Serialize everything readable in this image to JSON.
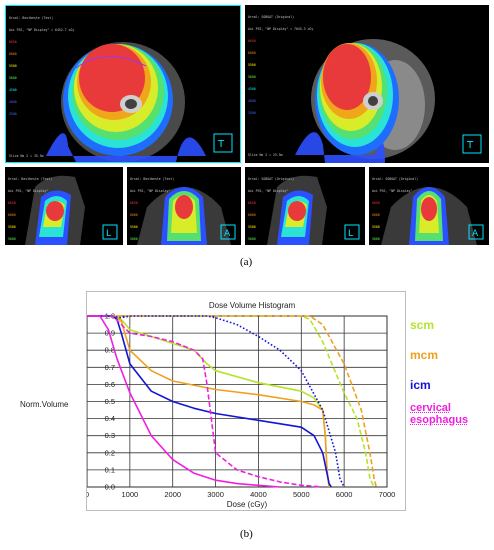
{
  "captions": {
    "a": "(a)",
    "b": "(b)"
  },
  "ct_panels": [
    {
      "id": "axial-left",
      "header": [
        "Ursal: Bestbeste (Test)",
        "Axi PSS, \"NP Display\" = 6452.7 cGy"
      ],
      "footer": "Slice No 2 = 35.5m",
      "levels": [
        "6650",
        "6000",
        "5500",
        "5000",
        "4500",
        "4000",
        "3500"
      ]
    },
    {
      "id": "axial-right",
      "header": [
        "Ursal: SOBOAT (Original)",
        "Axi PSS, \"NP Display\" = 7045.3 cGy"
      ],
      "footer": "Slice No 2 = 25.5m",
      "levels": [
        "6650",
        "6000",
        "5500",
        "5000",
        "4500",
        "4000",
        "3500"
      ]
    },
    {
      "id": "sag-1",
      "header": [
        "Ursal: Bestbeste (Test)",
        "Axi PSS, \"NP Display\""
      ],
      "footer": "",
      "levels": [
        "6650",
        "6000",
        "5500",
        "5000",
        "4500",
        "4000"
      ]
    },
    {
      "id": "cor-1",
      "header": [
        "Ursal: Bestbeste (Test)",
        "Axi PSS, \"NP Display\""
      ],
      "footer": "",
      "levels": [
        "6650",
        "6000",
        "5500",
        "5000",
        "4500",
        "4000"
      ]
    },
    {
      "id": "sag-2",
      "header": [
        "Ursal: SOBOAT (Original)",
        "Axi PSS, \"NP Display\""
      ],
      "footer": "",
      "levels": [
        "6650",
        "6000",
        "5500",
        "5000",
        "4500",
        "4000"
      ]
    },
    {
      "id": "cor-2",
      "header": [
        "Ursal: SOBOAT (Original)",
        "Axi PSS, \"NP Display\""
      ],
      "footer": "",
      "levels": [
        "6650",
        "6000",
        "5500",
        "5000",
        "4500",
        "4000"
      ]
    }
  ],
  "colors": {
    "scm": "#b5e32a",
    "mcm": "#f0a020",
    "icm": "#1414d8",
    "cervical_esophagus": "#f020e0",
    "grid": "#222222",
    "frame": "#00e5ff"
  },
  "chart_data": {
    "type": "line",
    "title": "Dose Volume Histogram",
    "xlabel": "Dose (cGy)",
    "ylabel": "Norm.Volume",
    "xlim": [
      0,
      7000
    ],
    "ylim": [
      0,
      1
    ],
    "xticks": [
      0,
      1000,
      2000,
      3000,
      4000,
      5000,
      6000,
      7000
    ],
    "yticks": [
      0.0,
      0.1,
      0.2,
      0.3,
      0.4,
      0.5,
      0.6,
      0.7,
      0.8,
      0.9,
      1.0
    ],
    "grid": true,
    "legend_position": "right",
    "series": [
      {
        "name": "scm",
        "style": "solid",
        "color": "#b5e32a",
        "x": [
          0,
          650,
          800,
          1000,
          1500,
          2000,
          2500,
          2800,
          3000,
          4000,
          5000,
          5300,
          5500,
          5560,
          5600,
          5650
        ],
        "y": [
          1.0,
          1.0,
          0.98,
          0.92,
          0.88,
          0.84,
          0.8,
          0.72,
          0.68,
          0.61,
          0.56,
          0.52,
          0.45,
          0.3,
          0.1,
          0.0
        ]
      },
      {
        "name": "scm",
        "style": "dashed",
        "color": "#b5e32a",
        "x": [
          0,
          500,
          2000,
          5000,
          5200,
          5500,
          6000,
          6300,
          6500,
          6600,
          6700
        ],
        "y": [
          1.0,
          1.0,
          1.0,
          1.0,
          0.98,
          0.85,
          0.55,
          0.4,
          0.2,
          0.05,
          0.0
        ]
      },
      {
        "name": "mcm",
        "style": "solid",
        "color": "#f0a020",
        "x": [
          0,
          650,
          800,
          1000,
          1500,
          2000,
          3000,
          4000,
          5000,
          5300,
          5500,
          5560,
          5600,
          5650
        ],
        "y": [
          1.0,
          1.0,
          0.97,
          0.8,
          0.68,
          0.62,
          0.57,
          0.54,
          0.5,
          0.48,
          0.45,
          0.3,
          0.1,
          0.0
        ]
      },
      {
        "name": "mcm",
        "style": "dashed",
        "color": "#f0a020",
        "x": [
          0,
          500,
          2000,
          5000,
          5200,
          5500,
          6000,
          6400,
          6600,
          6700,
          6750
        ],
        "y": [
          1.0,
          1.0,
          1.0,
          1.0,
          1.0,
          0.95,
          0.72,
          0.45,
          0.2,
          0.05,
          0.0
        ]
      },
      {
        "name": "icm",
        "style": "solid",
        "color": "#1414d8",
        "x": [
          0,
          600,
          700,
          800,
          1000,
          1500,
          2000,
          2500,
          3000,
          4000,
          5000,
          5300,
          5500,
          5600,
          5650,
          5700
        ],
        "y": [
          1.0,
          1.0,
          0.98,
          0.9,
          0.72,
          0.56,
          0.5,
          0.46,
          0.43,
          0.39,
          0.35,
          0.3,
          0.2,
          0.08,
          0.02,
          0.0
        ]
      },
      {
        "name": "icm",
        "style": "dotted",
        "color": "#1414d8",
        "x": [
          0,
          500,
          800,
          1000,
          2000,
          2800,
          3000,
          3500,
          4000,
          4500,
          5000,
          5500,
          5800,
          5900,
          6000
        ],
        "y": [
          1.0,
          1.0,
          0.99,
          1.0,
          1.0,
          1.0,
          0.99,
          0.95,
          0.88,
          0.8,
          0.68,
          0.45,
          0.2,
          0.05,
          0.0
        ]
      },
      {
        "name": "cervical esophagus",
        "style": "solid",
        "color": "#f020e0",
        "x": [
          0,
          300,
          500,
          700,
          1000,
          1500,
          2000,
          2500,
          3000,
          3500,
          4000,
          4500
        ],
        "y": [
          1.0,
          1.0,
          0.92,
          0.75,
          0.55,
          0.3,
          0.16,
          0.08,
          0.04,
          0.02,
          0.01,
          0.0
        ]
      },
      {
        "name": "cervical esophagus",
        "style": "dashed",
        "color": "#f020e0",
        "x": [
          0,
          600,
          1000,
          1500,
          2000,
          2500,
          2700,
          2800,
          2900,
          3000,
          3500,
          4000,
          4500,
          5000,
          5500
        ],
        "y": [
          1.0,
          1.0,
          0.9,
          0.88,
          0.85,
          0.8,
          0.75,
          0.6,
          0.4,
          0.2,
          0.1,
          0.06,
          0.03,
          0.01,
          0.0
        ]
      }
    ],
    "legend": [
      {
        "label": "scm",
        "color": "#b5e32a"
      },
      {
        "label": "mcm",
        "color": "#f0a020"
      },
      {
        "label": "icm",
        "color": "#1414d8"
      },
      {
        "label": "cervical esophagus",
        "lines": [
          "cervical",
          "esophagus"
        ],
        "color": "#f020e0"
      }
    ]
  }
}
